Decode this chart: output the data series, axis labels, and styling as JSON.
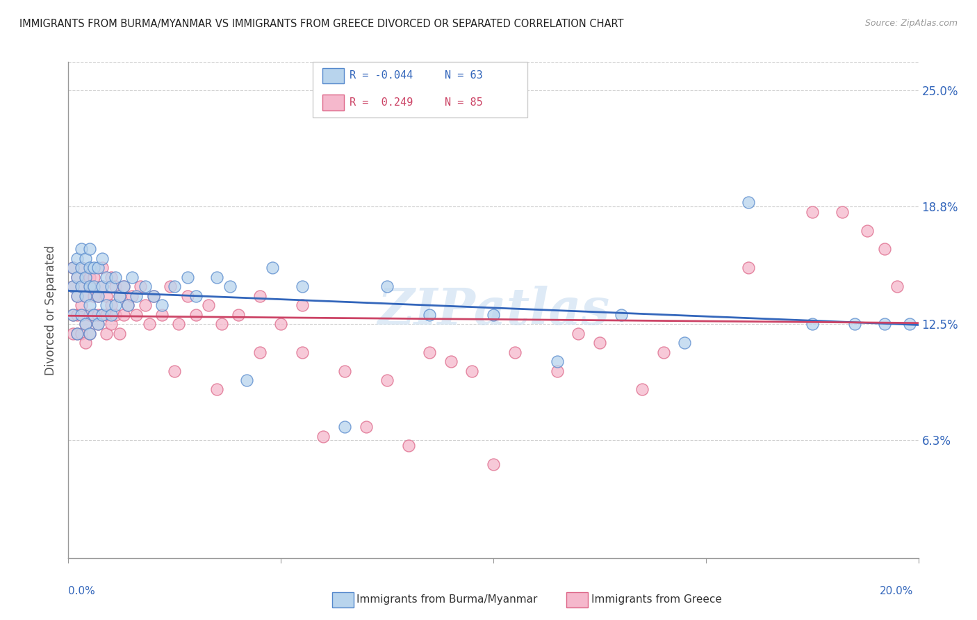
{
  "title": "IMMIGRANTS FROM BURMA/MYANMAR VS IMMIGRANTS FROM GREECE DIVORCED OR SEPARATED CORRELATION CHART",
  "source": "Source: ZipAtlas.com",
  "ylabel": "Divorced or Separated",
  "ytick_labels": [
    "6.3%",
    "12.5%",
    "18.8%",
    "25.0%"
  ],
  "ytick_values": [
    0.063,
    0.125,
    0.188,
    0.25
  ],
  "xlim": [
    0.0,
    0.2
  ],
  "ylim": [
    0.0,
    0.265
  ],
  "legend_r1": "R = -0.044",
  "legend_n1": "N = 63",
  "legend_r2": "R =  0.249",
  "legend_n2": "N = 85",
  "series1_label": "Immigrants from Burma/Myanmar",
  "series2_label": "Immigrants from Greece",
  "series1_color": "#b8d4ed",
  "series2_color": "#f5b8cc",
  "series1_edge_color": "#5588cc",
  "series2_edge_color": "#dd6688",
  "trendline1_color": "#3366bb",
  "trendline2_color": "#cc4466",
  "watermark": "ZIPatlas",
  "series1_x": [
    0.001,
    0.001,
    0.001,
    0.002,
    0.002,
    0.002,
    0.002,
    0.003,
    0.003,
    0.003,
    0.003,
    0.004,
    0.004,
    0.004,
    0.004,
    0.005,
    0.005,
    0.005,
    0.005,
    0.005,
    0.006,
    0.006,
    0.006,
    0.007,
    0.007,
    0.007,
    0.008,
    0.008,
    0.008,
    0.009,
    0.009,
    0.01,
    0.01,
    0.011,
    0.011,
    0.012,
    0.013,
    0.014,
    0.015,
    0.016,
    0.018,
    0.02,
    0.022,
    0.025,
    0.028,
    0.03,
    0.035,
    0.038,
    0.042,
    0.048,
    0.055,
    0.065,
    0.075,
    0.085,
    0.1,
    0.115,
    0.13,
    0.145,
    0.16,
    0.175,
    0.185,
    0.192,
    0.198
  ],
  "series1_y": [
    0.13,
    0.145,
    0.155,
    0.12,
    0.14,
    0.15,
    0.16,
    0.13,
    0.145,
    0.155,
    0.165,
    0.125,
    0.14,
    0.15,
    0.16,
    0.12,
    0.135,
    0.145,
    0.155,
    0.165,
    0.13,
    0.145,
    0.155,
    0.125,
    0.14,
    0.155,
    0.13,
    0.145,
    0.16,
    0.135,
    0.15,
    0.13,
    0.145,
    0.135,
    0.15,
    0.14,
    0.145,
    0.135,
    0.15,
    0.14,
    0.145,
    0.14,
    0.135,
    0.145,
    0.15,
    0.14,
    0.15,
    0.145,
    0.095,
    0.155,
    0.145,
    0.07,
    0.145,
    0.13,
    0.13,
    0.105,
    0.13,
    0.115,
    0.19,
    0.125,
    0.125,
    0.125,
    0.125
  ],
  "series2_x": [
    0.001,
    0.001,
    0.001,
    0.001,
    0.002,
    0.002,
    0.002,
    0.002,
    0.003,
    0.003,
    0.003,
    0.003,
    0.003,
    0.004,
    0.004,
    0.004,
    0.004,
    0.005,
    0.005,
    0.005,
    0.005,
    0.006,
    0.006,
    0.006,
    0.007,
    0.007,
    0.007,
    0.008,
    0.008,
    0.008,
    0.009,
    0.009,
    0.009,
    0.01,
    0.01,
    0.01,
    0.011,
    0.011,
    0.012,
    0.012,
    0.013,
    0.013,
    0.014,
    0.015,
    0.016,
    0.017,
    0.018,
    0.019,
    0.02,
    0.022,
    0.024,
    0.026,
    0.028,
    0.03,
    0.033,
    0.036,
    0.04,
    0.045,
    0.05,
    0.055,
    0.06,
    0.07,
    0.08,
    0.09,
    0.1,
    0.12,
    0.14,
    0.16,
    0.175,
    0.182,
    0.188,
    0.192,
    0.195,
    0.025,
    0.035,
    0.045,
    0.055,
    0.065,
    0.075,
    0.085,
    0.095,
    0.105,
    0.115,
    0.125,
    0.135
  ],
  "series2_y": [
    0.13,
    0.145,
    0.12,
    0.155,
    0.14,
    0.13,
    0.15,
    0.12,
    0.155,
    0.13,
    0.145,
    0.12,
    0.135,
    0.15,
    0.125,
    0.14,
    0.115,
    0.15,
    0.13,
    0.145,
    0.12,
    0.14,
    0.13,
    0.15,
    0.125,
    0.14,
    0.13,
    0.155,
    0.13,
    0.145,
    0.14,
    0.13,
    0.12,
    0.15,
    0.135,
    0.125,
    0.145,
    0.13,
    0.14,
    0.12,
    0.145,
    0.13,
    0.135,
    0.14,
    0.13,
    0.145,
    0.135,
    0.125,
    0.14,
    0.13,
    0.145,
    0.125,
    0.14,
    0.13,
    0.135,
    0.125,
    0.13,
    0.14,
    0.125,
    0.135,
    0.065,
    0.07,
    0.06,
    0.105,
    0.05,
    0.12,
    0.11,
    0.155,
    0.185,
    0.185,
    0.175,
    0.165,
    0.145,
    0.1,
    0.09,
    0.11,
    0.11,
    0.1,
    0.095,
    0.11,
    0.1,
    0.11,
    0.1,
    0.115,
    0.09
  ]
}
